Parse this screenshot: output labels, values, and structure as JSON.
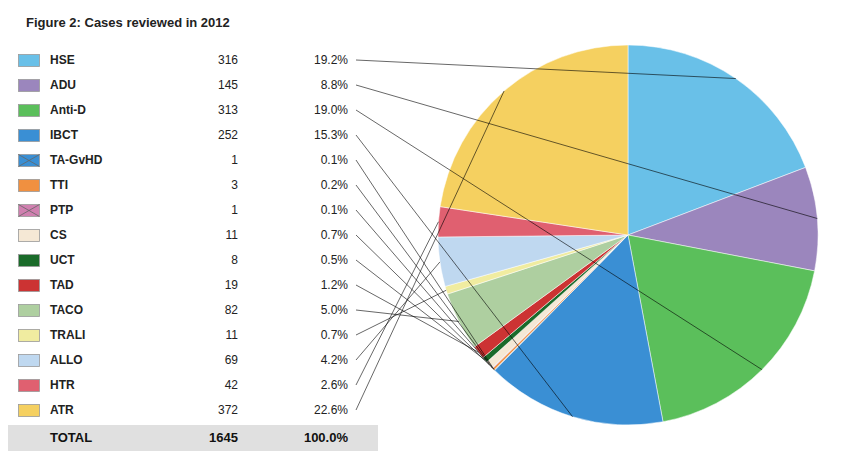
{
  "chart_data": {
    "type": "pie",
    "title": "Figure 2: Cases reviewed in 2012",
    "categories": [
      "HSE",
      "ADU",
      "Anti-D",
      "IBCT",
      "TA-GvHD",
      "TTI",
      "PTP",
      "CS",
      "UCT",
      "TAD",
      "TACO",
      "TRALI",
      "ALLO",
      "HTR",
      "ATR"
    ],
    "values": [
      316,
      145,
      313,
      252,
      1,
      3,
      1,
      11,
      8,
      19,
      82,
      11,
      69,
      42,
      372
    ],
    "percentages": [
      {
        "value": 19.2,
        "label": "19.2%"
      },
      {
        "value": 8.8,
        "label": "8.8%"
      },
      {
        "value": 19.0,
        "label": "19.0%"
      },
      {
        "value": 15.3,
        "label": "15.3%"
      },
      {
        "value": 0.1,
        "label": "0.1%"
      },
      {
        "value": 0.2,
        "label": "0.2%"
      },
      {
        "value": 0.1,
        "label": "0.1%"
      },
      {
        "value": 0.7,
        "label": "0.7%"
      },
      {
        "value": 0.5,
        "label": "0.5%"
      },
      {
        "value": 1.2,
        "label": "1.2%"
      },
      {
        "value": 5.0,
        "label": "5.0%"
      },
      {
        "value": 0.7,
        "label": "0.7%"
      },
      {
        "value": 4.2,
        "label": "4.2%"
      },
      {
        "value": 2.6,
        "label": "2.6%"
      },
      {
        "value": 22.6,
        "label": "22.6%"
      }
    ],
    "colors": [
      "#69C0E8",
      "#9B86BD",
      "#5BBF5B",
      "#3A8FD4",
      "#3A8FD4",
      "#F09040",
      "#D080B0",
      "#F5E8D5",
      "#1A6B2A",
      "#CC3333",
      "#AECFA0",
      "#F0ECA0",
      "#BFD8F0",
      "#E06070",
      "#F5D060"
    ],
    "markers": [
      "square",
      "square",
      "square",
      "square",
      "cross_square",
      "square",
      "cross_square",
      "square",
      "square",
      "square",
      "square",
      "square",
      "square",
      "square",
      "square"
    ],
    "total": 1645,
    "total_label": "TOTAL",
    "total_percentage": {
      "value": 100.0,
      "label": "100.0%"
    }
  }
}
